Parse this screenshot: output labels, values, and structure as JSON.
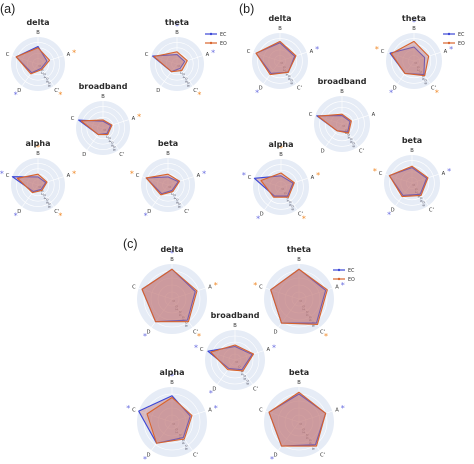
{
  "panels": [
    {
      "label": "(a)"
    },
    {
      "label": "(b)"
    },
    {
      "label": "(c)"
    }
  ],
  "colors": {
    "bg": "#e6ecf6",
    "grid": "#ffffff",
    "EC": "#3a46d6",
    "EO": "#d8632c",
    "fill": "#c07777",
    "star_blue": "#6a6ee0",
    "star_orange": "#f08a2a"
  },
  "legend": {
    "entries": [
      "EC",
      "EO"
    ]
  },
  "chart_data": [
    {
      "panel": "(a)",
      "type": "radar",
      "axes": [
        "A",
        "B",
        "C",
        "D",
        "C'"
      ],
      "radial_ticks": [
        "0.8",
        "0.6",
        "0.4",
        "0.2",
        "0"
      ],
      "subplots": [
        {
          "title": "delta",
          "series": [
            {
              "name": "EC",
              "values": [
                0.35,
                0.65,
                0.85,
                0.4,
                0.2
              ]
            },
            {
              "name": "EO",
              "values": [
                0.45,
                0.6,
                0.85,
                0.45,
                0.25
              ]
            }
          ],
          "stars": [
            {
              "axis": "A",
              "color": "orange"
            },
            {
              "axis": "D",
              "color": "blue"
            },
            {
              "axis": "C'",
              "color": "orange"
            }
          ]
        },
        {
          "title": "theta",
          "series": [
            {
              "name": "EC",
              "values": [
                0.3,
                0.35,
                0.95,
                0.35,
                0.2
              ]
            },
            {
              "name": "EO",
              "values": [
                0.4,
                0.45,
                0.9,
                0.35,
                0.3
              ]
            }
          ],
          "stars": [
            {
              "axis": "B",
              "color": "blue"
            },
            {
              "axis": "A",
              "color": "blue"
            },
            {
              "axis": "C'",
              "color": "orange"
            }
          ]
        },
        {
          "title": "broadband",
          "series": [
            {
              "name": "EC",
              "values": [
                0.3,
                0.25,
                0.95,
                0.3,
                0.25
              ]
            },
            {
              "name": "EO",
              "values": [
                0.35,
                0.3,
                0.85,
                0.3,
                0.3
              ]
            }
          ],
          "stars": [
            {
              "axis": "A",
              "color": "orange"
            }
          ]
        },
        {
          "title": "alpha",
          "series": [
            {
              "name": "EC",
              "values": [
                0.3,
                0.3,
                1.0,
                0.3,
                0.2
              ]
            },
            {
              "name": "EO",
              "values": [
                0.35,
                0.4,
                0.8,
                0.35,
                0.25
              ]
            }
          ],
          "stars": [
            {
              "axis": "B",
              "color": "orange"
            },
            {
              "axis": "A",
              "color": "orange"
            },
            {
              "axis": "C",
              "color": "blue"
            },
            {
              "axis": "D",
              "color": "blue"
            },
            {
              "axis": "C'",
              "color": "orange"
            }
          ]
        },
        {
          "title": "beta",
          "series": [
            {
              "name": "EC",
              "values": [
                0.4,
                0.3,
                0.85,
                0.4,
                0.25
              ]
            },
            {
              "name": "EO",
              "values": [
                0.45,
                0.4,
                0.85,
                0.45,
                0.3
              ]
            }
          ],
          "stars": [
            {
              "axis": "A",
              "color": "blue"
            },
            {
              "axis": "C",
              "color": "orange"
            },
            {
              "axis": "D",
              "color": "blue"
            }
          ]
        }
      ]
    },
    {
      "panel": "(b)",
      "type": "radar",
      "axes": [
        "A",
        "B",
        "C",
        "D",
        "C'"
      ],
      "radial_ticks": [
        "0.8",
        "0.6",
        "0.4",
        "0.2",
        "0"
      ],
      "subplots": [
        {
          "title": "delta",
          "series": [
            {
              "name": "EC",
              "values": [
                0.55,
                0.65,
                0.9,
                0.55,
                0.5
              ]
            },
            {
              "name": "EO",
              "values": [
                0.6,
                0.7,
                0.9,
                0.6,
                0.5
              ]
            }
          ],
          "stars": [
            {
              "axis": "A",
              "color": "blue"
            },
            {
              "axis": "D",
              "color": "blue"
            }
          ]
        },
        {
          "title": "theta",
          "series": [
            {
              "name": "EC",
              "values": [
                0.4,
                0.5,
                0.9,
                0.55,
                0.6
              ]
            },
            {
              "name": "EO",
              "values": [
                0.55,
                0.7,
                0.85,
                0.55,
                0.65
              ]
            }
          ],
          "stars": [
            {
              "axis": "B",
              "color": "blue"
            },
            {
              "axis": "A",
              "color": "blue"
            },
            {
              "axis": "C",
              "color": "orange"
            },
            {
              "axis": "D",
              "color": "blue"
            },
            {
              "axis": "C'",
              "color": "orange"
            }
          ]
        },
        {
          "title": "broadband",
          "series": [
            {
              "name": "EC",
              "values": [
                0.3,
                0.3,
                0.95,
                0.3,
                0.35
              ]
            },
            {
              "name": "EO",
              "values": [
                0.35,
                0.35,
                0.9,
                0.3,
                0.4
              ]
            }
          ],
          "stars": []
        },
        {
          "title": "alpha",
          "series": [
            {
              "name": "EC",
              "values": [
                0.45,
                0.4,
                1.0,
                0.4,
                0.4
              ]
            },
            {
              "name": "EO",
              "values": [
                0.5,
                0.5,
                0.75,
                0.45,
                0.45
              ]
            }
          ],
          "stars": [
            {
              "axis": "B",
              "color": "orange"
            },
            {
              "axis": "A",
              "color": "orange"
            },
            {
              "axis": "C",
              "color": "blue"
            },
            {
              "axis": "D",
              "color": "blue"
            },
            {
              "axis": "C'",
              "color": "orange"
            }
          ]
        },
        {
          "title": "beta",
          "series": [
            {
              "name": "EC",
              "values": [
                0.55,
                0.55,
                0.85,
                0.55,
                0.5
              ]
            },
            {
              "name": "EO",
              "values": [
                0.6,
                0.6,
                0.85,
                0.6,
                0.55
              ]
            }
          ],
          "stars": [
            {
              "axis": "A",
              "color": "blue"
            },
            {
              "axis": "C",
              "color": "orange"
            },
            {
              "axis": "D",
              "color": "blue"
            }
          ]
        }
      ]
    },
    {
      "panel": "(c)",
      "type": "radar",
      "axes": [
        "A",
        "B",
        "C",
        "D",
        "C'"
      ],
      "radial_ticks": [
        "0.8",
        "0.6",
        "0.4",
        "0.2",
        "0"
      ],
      "subplots": [
        {
          "title": "delta",
          "series": [
            {
              "name": "EC",
              "values": [
                0.7,
                0.85,
                0.9,
                0.8,
                0.75
              ]
            },
            {
              "name": "EO",
              "values": [
                0.75,
                0.85,
                0.9,
                0.8,
                0.8
              ]
            }
          ],
          "stars": [
            {
              "axis": "B",
              "color": "blue"
            },
            {
              "axis": "A",
              "color": "orange"
            },
            {
              "axis": "D",
              "color": "blue"
            },
            {
              "axis": "C'",
              "color": "orange"
            }
          ]
        },
        {
          "title": "theta",
          "series": [
            {
              "name": "EC",
              "values": [
                0.8,
                0.85,
                0.85,
                0.85,
                0.85
              ]
            },
            {
              "name": "EO",
              "values": [
                0.85,
                0.85,
                0.85,
                0.85,
                0.9
              ]
            }
          ],
          "stars": [
            {
              "axis": "A",
              "color": "blue"
            },
            {
              "axis": "C",
              "color": "orange"
            },
            {
              "axis": "C'",
              "color": "orange"
            }
          ]
        },
        {
          "title": "broadband",
          "series": [
            {
              "name": "EC",
              "values": [
                0.6,
                0.45,
                0.95,
                0.35,
                0.4
              ]
            },
            {
              "name": "EO",
              "values": [
                0.65,
                0.5,
                0.85,
                0.4,
                0.45
              ]
            }
          ],
          "stars": [
            {
              "axis": "A",
              "color": "blue"
            },
            {
              "axis": "C",
              "color": "blue"
            },
            {
              "axis": "D",
              "color": "blue"
            }
          ]
        },
        {
          "title": "alpha",
          "series": [
            {
              "name": "EC",
              "values": [
                0.55,
                0.75,
                1.0,
                0.75,
                0.55
              ]
            },
            {
              "name": "EO",
              "values": [
                0.6,
                0.7,
                0.75,
                0.75,
                0.6
              ]
            }
          ],
          "stars": [
            {
              "axis": "B",
              "color": "blue"
            },
            {
              "axis": "A",
              "color": "blue"
            },
            {
              "axis": "C",
              "color": "blue"
            },
            {
              "axis": "D",
              "color": "blue"
            }
          ]
        },
        {
          "title": "beta",
          "series": [
            {
              "name": "EC",
              "values": [
                0.8,
                0.8,
                0.9,
                0.85,
                0.8
              ]
            },
            {
              "name": "EO",
              "values": [
                0.8,
                0.85,
                0.9,
                0.85,
                0.85
              ]
            }
          ],
          "stars": [
            {
              "axis": "A",
              "color": "blue"
            },
            {
              "axis": "D",
              "color": "blue"
            }
          ]
        }
      ]
    }
  ]
}
